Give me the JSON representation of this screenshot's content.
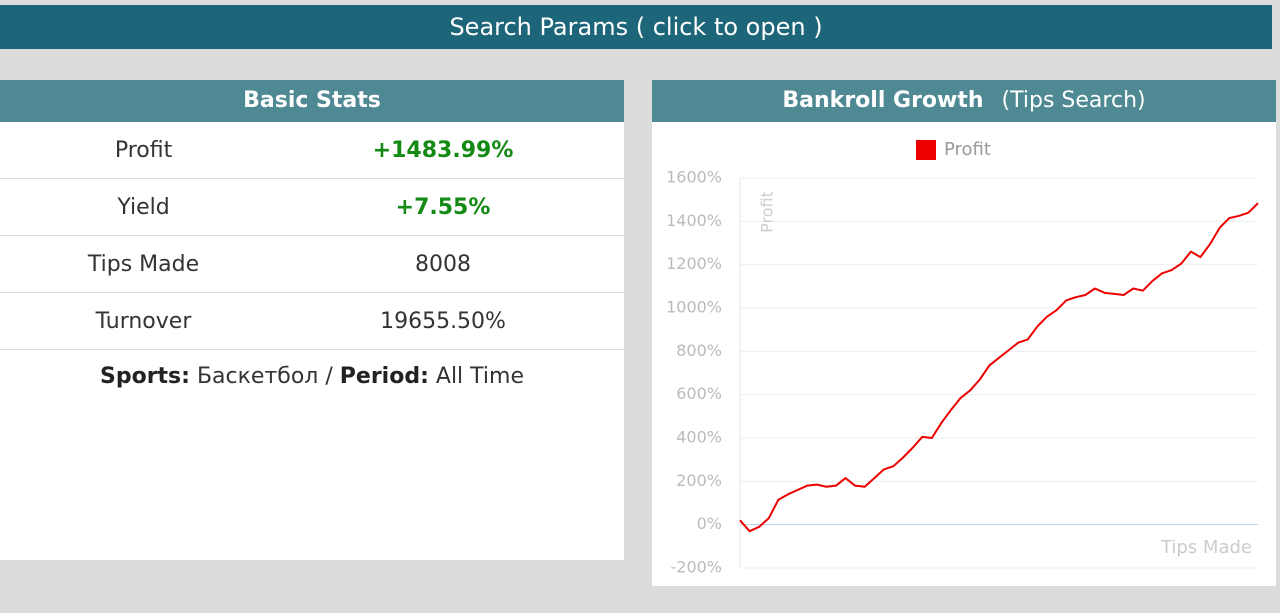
{
  "header": {
    "title": "Search Params ( click to open )"
  },
  "stats": {
    "title": "Basic Stats",
    "rows": [
      [
        "Profit",
        "+1483.99%"
      ],
      [
        "Yield",
        "+7.55%"
      ],
      [
        "Tips Made",
        "8008"
      ],
      [
        "Turnover",
        "19655.50%"
      ]
    ],
    "footer": {
      "sports_label": "Sports:",
      "sports": "Баскетбол",
      "separator": "/",
      "period_label": "Period:",
      "period": "All Time"
    }
  },
  "chart_panel": {
    "title": "Bankroll Growth",
    "subtitle": "(Tips Search)"
  },
  "chart_data": {
    "type": "line",
    "y_label": "Profit",
    "x_label": "Tips Made",
    "legend": "top",
    "grid": true,
    "ylim": [
      -200,
      1600
    ],
    "yticks": [
      {
        "value": -200,
        "label": "-200%"
      },
      {
        "value": 0,
        "label": "0%"
      },
      {
        "value": 200,
        "label": "200%"
      },
      {
        "value": 400,
        "label": "400%"
      },
      {
        "value": 600,
        "label": "600%"
      },
      {
        "value": 800,
        "label": "800%"
      },
      {
        "value": 1000,
        "label": "1000%"
      },
      {
        "value": 1200,
        "label": "1200%"
      },
      {
        "value": 1400,
        "label": "1400%"
      },
      {
        "value": 1600,
        "label": "1600%"
      }
    ],
    "series": [
      {
        "name": "Profit",
        "color": "#ee0000",
        "values": [
          20,
          -30,
          -10,
          30,
          115,
          140,
          160,
          180,
          185,
          175,
          180,
          215,
          180,
          175,
          215,
          255,
          270,
          310,
          355,
          405,
          400,
          470,
          530,
          585,
          620,
          670,
          735,
          770,
          805,
          840,
          855,
          915,
          960,
          990,
          1035,
          1050,
          1060,
          1090,
          1070,
          1065,
          1060,
          1090,
          1080,
          1125,
          1160,
          1175,
          1205,
          1260,
          1235,
          1295,
          1370,
          1415,
          1425,
          1440,
          1484
        ]
      }
    ]
  }
}
